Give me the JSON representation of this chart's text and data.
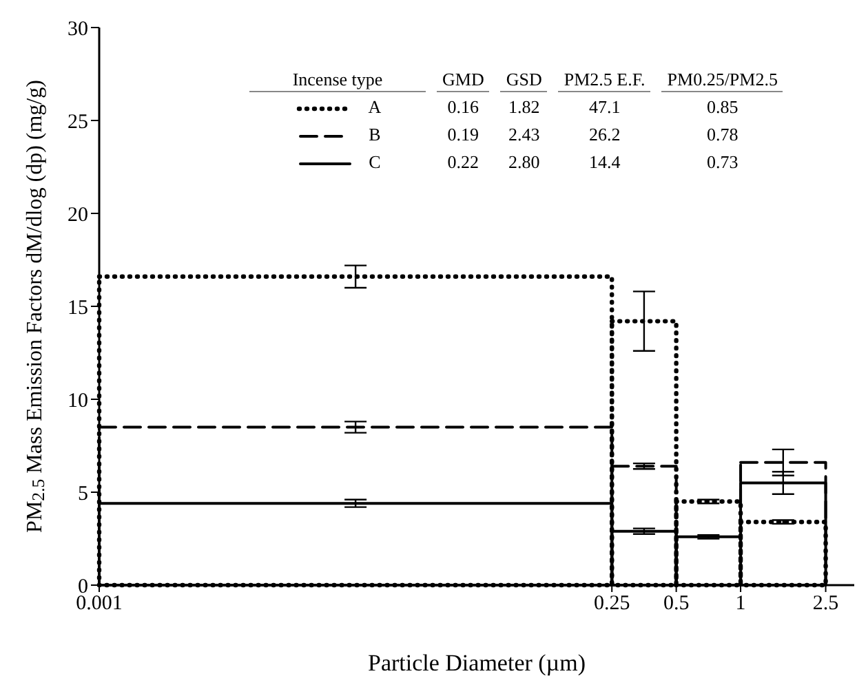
{
  "chart_data": {
    "type": "histogram",
    "xlabel": "Particle Diameter (µm)",
    "ylabel": "PM$_{2.5}$  Mass Emission Factors dM/dlog (dp) (mg/g)",
    "legend_title": "Incense type",
    "bins": [
      0.001,
      0.25,
      0.5,
      1,
      2.5
    ],
    "series": [
      {
        "name": "A",
        "color": "#000000",
        "line_style": "dotted",
        "values": [
          16.6,
          14.2,
          4.5,
          3.4
        ],
        "errors": [
          0.6,
          1.6,
          0.1,
          0.1
        ]
      },
      {
        "name": "B",
        "color": "#000000",
        "line_style": "dashed",
        "values": [
          8.5,
          6.4,
          null,
          6.6
        ],
        "errors": [
          0.3,
          0.15,
          null,
          0.7
        ]
      },
      {
        "name": "C",
        "color": "#000000",
        "line_style": "solid",
        "values": [
          4.4,
          2.9,
          2.6,
          5.5
        ],
        "errors": [
          0.2,
          0.15,
          0.1,
          0.6
        ]
      }
    ],
    "annotations": [
      "GMD",
      "GSD",
      "PM2.5 E.F.",
      "PM0.25/PM2.5",
      "0.16",
      "1.82",
      "47.1",
      "0.85",
      "0.19",
      "2.43",
      "26.2",
      "0.78",
      "0.22",
      "2.80",
      "14.4",
      "0.73"
    ],
    "log": "x",
    "xlim": [
      0.001,
      3.4
    ],
    "xticks": [
      0.001,
      0.25,
      0.5,
      1,
      2.5
    ],
    "ylim": [
      0,
      30
    ],
    "yticks": [
      0,
      5,
      10,
      15,
      20,
      25,
      30
    ],
    "grid": false,
    "legend": "top",
    "marker": "none"
  }
}
